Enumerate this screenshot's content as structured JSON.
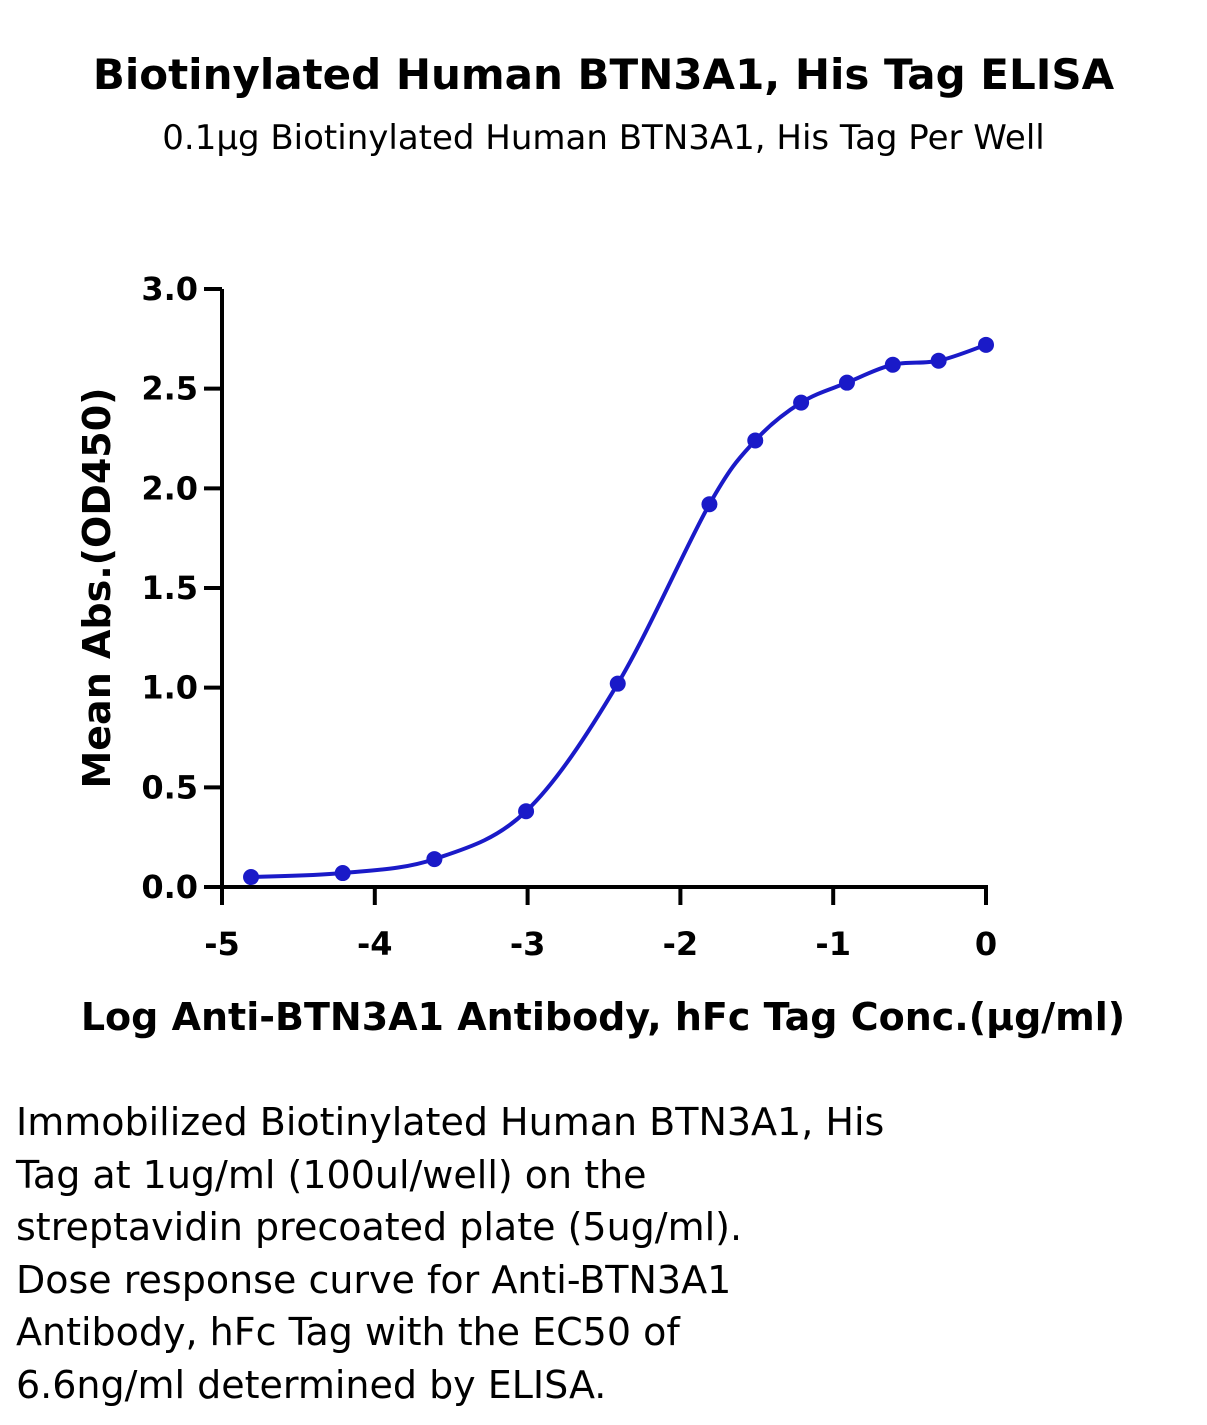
{
  "chart_data": {
    "type": "scatter",
    "title": "Biotinylated Human BTN3A1, His Tag ELISA",
    "subtitle": "0.1μg Biotinylated Human BTN3A1, His Tag Per Well",
    "xlabel": "Log Anti-BTN3A1 Antibody, hFc  Tag Conc.(μg/ml)",
    "ylabel": "Mean Abs.(OD450)",
    "xlim": [
      -5,
      0
    ],
    "ylim": [
      0,
      3
    ],
    "x_ticks": [
      "-5",
      "-4",
      "-3",
      "-2",
      "-1",
      "0"
    ],
    "y_ticks": [
      "0.0",
      "0.5",
      "1.0",
      "1.5",
      "2.0",
      "2.5",
      "3.0"
    ],
    "grid": false,
    "color": "#1a1ac8",
    "series": [
      {
        "points": [
          {
            "x": -4.81,
            "y": 0.05
          },
          {
            "x": -4.21,
            "y": 0.07
          },
          {
            "x": -3.61,
            "y": 0.14
          },
          {
            "x": -3.01,
            "y": 0.38
          },
          {
            "x": -2.41,
            "y": 1.02
          },
          {
            "x": -1.81,
            "y": 1.92
          },
          {
            "x": -1.51,
            "y": 2.24
          },
          {
            "x": -1.21,
            "y": 2.43
          },
          {
            "x": -0.91,
            "y": 2.53
          },
          {
            "x": -0.61,
            "y": 2.62
          },
          {
            "x": -0.31,
            "y": 2.64
          },
          {
            "x": 0.0,
            "y": 2.72
          }
        ]
      }
    ]
  },
  "caption_lines": [
    "Immobilized Biotinylated Human BTN3A1, His",
    "Tag at 1ug/ml (100ul/well) on the",
    "streptavidin precoated plate (5ug/ml).",
    "Dose response curve for Anti-BTN3A1",
    "Antibody, hFc Tag with the EC50 of",
    "6.6ng/ml determined by ELISA."
  ]
}
